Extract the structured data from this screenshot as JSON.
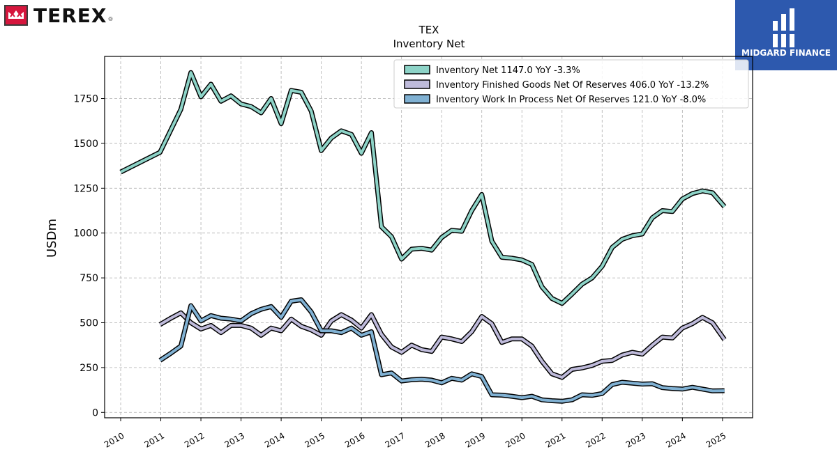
{
  "branding": {
    "logo_text": "TEREX",
    "logo_reg": "®",
    "badge_text": "MIDGARD FINANCE",
    "logo_color": "#d6163d",
    "badge_color": "#2d59ae"
  },
  "chart_data": {
    "type": "line",
    "title": "TEX",
    "subtitle": "Inventory Net",
    "xlabel": "",
    "ylabel": "USDm",
    "xlim": [
      2009.6,
      2025.75
    ],
    "ylim": [
      -30,
      1985
    ],
    "yticks": [
      0,
      250,
      500,
      750,
      1000,
      1250,
      1500,
      1750
    ],
    "xticks": [
      2010,
      2011,
      2012,
      2013,
      2014,
      2015,
      2016,
      2017,
      2018,
      2019,
      2020,
      2021,
      2022,
      2023,
      2024,
      2025
    ],
    "grid": true,
    "legend_position": "top-right",
    "series": [
      {
        "name": "Inventory Net  1147.0 YoY -3.3%",
        "color": "#8dd3c7",
        "points": [
          [
            2010.0,
            1340
          ],
          [
            2010.98,
            1450
          ],
          [
            2011.5,
            1690
          ],
          [
            2011.75,
            1895
          ],
          [
            2012.0,
            1760
          ],
          [
            2012.25,
            1830
          ],
          [
            2012.5,
            1735
          ],
          [
            2012.75,
            1765
          ],
          [
            2013.0,
            1720
          ],
          [
            2013.25,
            1705
          ],
          [
            2013.5,
            1670
          ],
          [
            2013.75,
            1750
          ],
          [
            2014.0,
            1610
          ],
          [
            2014.25,
            1795
          ],
          [
            2014.5,
            1785
          ],
          [
            2014.75,
            1680
          ],
          [
            2015.0,
            1460
          ],
          [
            2015.25,
            1530
          ],
          [
            2015.5,
            1570
          ],
          [
            2015.75,
            1550
          ],
          [
            2016.0,
            1445
          ],
          [
            2016.25,
            1560
          ],
          [
            2016.5,
            1035
          ],
          [
            2016.75,
            980
          ],
          [
            2017.0,
            855
          ],
          [
            2017.25,
            910
          ],
          [
            2017.5,
            915
          ],
          [
            2017.75,
            905
          ],
          [
            2018.0,
            975
          ],
          [
            2018.25,
            1015
          ],
          [
            2018.5,
            1010
          ],
          [
            2018.75,
            1125
          ],
          [
            2019.0,
            1215
          ],
          [
            2019.25,
            955
          ],
          [
            2019.5,
            865
          ],
          [
            2019.75,
            860
          ],
          [
            2020.0,
            850
          ],
          [
            2020.25,
            825
          ],
          [
            2020.5,
            700
          ],
          [
            2020.75,
            635
          ],
          [
            2021.0,
            608
          ],
          [
            2021.25,
            660
          ],
          [
            2021.5,
            715
          ],
          [
            2021.75,
            750
          ],
          [
            2022.0,
            815
          ],
          [
            2022.25,
            920
          ],
          [
            2022.5,
            965
          ],
          [
            2022.75,
            985
          ],
          [
            2023.0,
            995
          ],
          [
            2023.25,
            1085
          ],
          [
            2023.5,
            1125
          ],
          [
            2023.75,
            1120
          ],
          [
            2024.0,
            1190
          ],
          [
            2024.25,
            1220
          ],
          [
            2024.5,
            1235
          ],
          [
            2024.75,
            1225
          ],
          [
            2025.05,
            1147
          ]
        ]
      },
      {
        "name": "Inventory Finished Goods Net Of Reserves  406.0 YoY -13.2%",
        "color": "#bebada",
        "points": [
          [
            2010.98,
            490
          ],
          [
            2011.25,
            525
          ],
          [
            2011.5,
            555
          ],
          [
            2011.75,
            500
          ],
          [
            2012.0,
            465
          ],
          [
            2012.25,
            485
          ],
          [
            2012.5,
            445
          ],
          [
            2012.75,
            485
          ],
          [
            2013.0,
            485
          ],
          [
            2013.25,
            470
          ],
          [
            2013.5,
            430
          ],
          [
            2013.75,
            470
          ],
          [
            2014.0,
            455
          ],
          [
            2014.25,
            520
          ],
          [
            2014.5,
            480
          ],
          [
            2014.75,
            460
          ],
          [
            2015.0,
            430
          ],
          [
            2015.25,
            510
          ],
          [
            2015.5,
            545
          ],
          [
            2015.75,
            515
          ],
          [
            2016.0,
            470
          ],
          [
            2016.25,
            545
          ],
          [
            2016.5,
            435
          ],
          [
            2016.75,
            365
          ],
          [
            2017.0,
            335
          ],
          [
            2017.25,
            375
          ],
          [
            2017.5,
            350
          ],
          [
            2017.75,
            340
          ],
          [
            2018.0,
            420
          ],
          [
            2018.25,
            410
          ],
          [
            2018.5,
            395
          ],
          [
            2018.75,
            450
          ],
          [
            2019.0,
            535
          ],
          [
            2019.25,
            495
          ],
          [
            2019.5,
            390
          ],
          [
            2019.75,
            410
          ],
          [
            2020.0,
            410
          ],
          [
            2020.25,
            370
          ],
          [
            2020.5,
            285
          ],
          [
            2020.75,
            215
          ],
          [
            2021.0,
            195
          ],
          [
            2021.25,
            240
          ],
          [
            2021.5,
            248
          ],
          [
            2021.75,
            262
          ],
          [
            2022.0,
            285
          ],
          [
            2022.25,
            290
          ],
          [
            2022.5,
            320
          ],
          [
            2022.75,
            335
          ],
          [
            2023.0,
            325
          ],
          [
            2023.25,
            375
          ],
          [
            2023.5,
            420
          ],
          [
            2023.75,
            415
          ],
          [
            2024.0,
            470
          ],
          [
            2024.25,
            495
          ],
          [
            2024.5,
            530
          ],
          [
            2024.75,
            500
          ],
          [
            2025.05,
            406
          ]
        ]
      },
      {
        "name": "Inventory Work In Process Net Of Reserves  121.0 YoY -8.0%",
        "color": "#80b1d3",
        "points": [
          [
            2010.98,
            290
          ],
          [
            2011.25,
            330
          ],
          [
            2011.5,
            370
          ],
          [
            2011.75,
            595
          ],
          [
            2012.0,
            510
          ],
          [
            2012.25,
            540
          ],
          [
            2012.5,
            525
          ],
          [
            2012.75,
            520
          ],
          [
            2013.0,
            510
          ],
          [
            2013.25,
            550
          ],
          [
            2013.5,
            575
          ],
          [
            2013.75,
            590
          ],
          [
            2014.0,
            530
          ],
          [
            2014.25,
            620
          ],
          [
            2014.5,
            628
          ],
          [
            2014.75,
            560
          ],
          [
            2015.0,
            455
          ],
          [
            2015.25,
            455
          ],
          [
            2015.5,
            445
          ],
          [
            2015.75,
            470
          ],
          [
            2016.0,
            430
          ],
          [
            2016.25,
            450
          ],
          [
            2016.5,
            210
          ],
          [
            2016.75,
            220
          ],
          [
            2017.0,
            175
          ],
          [
            2017.25,
            182
          ],
          [
            2017.5,
            185
          ],
          [
            2017.75,
            180
          ],
          [
            2018.0,
            165
          ],
          [
            2018.25,
            190
          ],
          [
            2018.5,
            180
          ],
          [
            2018.75,
            215
          ],
          [
            2019.0,
            200
          ],
          [
            2019.25,
            98
          ],
          [
            2019.5,
            96
          ],
          [
            2019.75,
            90
          ],
          [
            2020.0,
            82
          ],
          [
            2020.25,
            90
          ],
          [
            2020.5,
            70
          ],
          [
            2020.75,
            65
          ],
          [
            2021.0,
            62
          ],
          [
            2021.25,
            70
          ],
          [
            2021.5,
            98
          ],
          [
            2021.75,
            95
          ],
          [
            2022.0,
            105
          ],
          [
            2022.25,
            155
          ],
          [
            2022.5,
            168
          ],
          [
            2022.75,
            163
          ],
          [
            2023.0,
            158
          ],
          [
            2023.25,
            160
          ],
          [
            2023.5,
            138
          ],
          [
            2023.75,
            133
          ],
          [
            2024.0,
            130
          ],
          [
            2024.25,
            140
          ],
          [
            2024.5,
            130
          ],
          [
            2024.75,
            120
          ],
          [
            2025.05,
            121
          ]
        ]
      }
    ]
  }
}
